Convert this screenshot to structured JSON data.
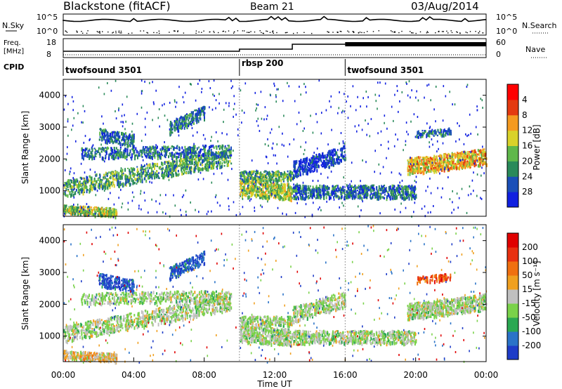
{
  "header": {
    "station": "Blackstone (fitACF)",
    "beam": "Beam 21",
    "date": "03/Aug/2014"
  },
  "top_panels": {
    "nsky_label": "N.Sky",
    "nsearch_label": "N.Search",
    "nsky_ticks": [
      "10^5",
      "10^0"
    ],
    "freq_label_1": "Freq.",
    "freq_label_2": "[MHz]",
    "freq_ticks": [
      "18",
      "8"
    ],
    "nave_label": "Nave",
    "nave_ticks": [
      "60",
      "0"
    ],
    "cpid_label": "CPID"
  },
  "cpid_segments": [
    {
      "name": "twofsound 3501",
      "start_hour": 0,
      "end_hour": 10
    },
    {
      "name": "rbsp 200",
      "start_hour": 10,
      "end_hour": 16
    },
    {
      "name": "twofsound 3501",
      "start_hour": 16,
      "end_hour": 24
    }
  ],
  "chart_data": [
    {
      "type": "heatmap",
      "panel": "power",
      "ylabel": "Slant Range [km]",
      "yticks": [
        1000,
        2000,
        3000,
        4000
      ],
      "ylim": [
        200,
        4500
      ],
      "xlim_hours": [
        0,
        24
      ],
      "colorbar": {
        "label": "Power [dB]",
        "ticks": [
          "4",
          "8",
          "12",
          "16",
          "20",
          "24",
          "28"
        ],
        "colors": [
          "#1020e0",
          "#1a4fb8",
          "#2a8a5a",
          "#5fb84a",
          "#d9d22a",
          "#f59a20",
          "#e43a10",
          "#ff0000"
        ]
      }
    },
    {
      "type": "heatmap",
      "panel": "velocity",
      "ylabel": "Slant Range [km]",
      "xlabel": "Time UT",
      "yticks": [
        1000,
        2000,
        3000,
        4000
      ],
      "ylim": [
        200,
        4500
      ],
      "xlim_hours": [
        0,
        24
      ],
      "xticks": [
        "00:00",
        "04:00",
        "08:00",
        "12:00",
        "16:00",
        "20:00",
        "00:00"
      ],
      "colorbar": {
        "label": "Velocity [m s⁻¹]",
        "ticks": [
          "200",
          "100",
          "50",
          "15",
          "-15",
          "-50",
          "-100",
          "-200"
        ],
        "colors": [
          "#1e3cc8",
          "#2a73c8",
          "#2aa852",
          "#7ad24a",
          "#c0c0c0",
          "#f0a020",
          "#f07010",
          "#e83010",
          "#e00000"
        ]
      }
    }
  ]
}
